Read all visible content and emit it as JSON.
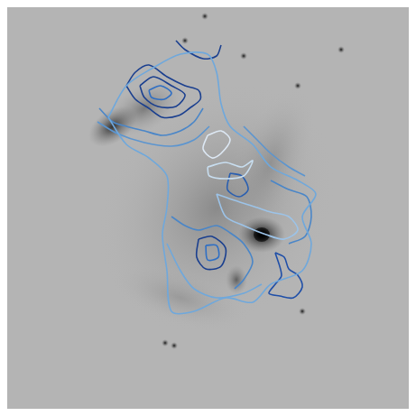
{
  "chart_data": {
    "type": "contour",
    "xlim": [
      0,
      461
    ],
    "ylim": [
      0,
      461
    ],
    "tick_labels": false,
    "grid": false,
    "series": [
      {
        "color": "#6fa8dc",
        "x": [
          120,
          140,
          165,
          185,
          185,
          180,
          185,
          190,
          215,
          250,
          280,
          300,
          335,
          345,
          335,
          350,
          330,
          300,
          280,
          255,
          245,
          240,
          230,
          200,
          170,
          140,
          120
        ],
        "values": [
          130,
          160,
          175,
          195,
          230,
          260,
          300,
          345,
          345,
          330,
          335,
          315,
          300,
          270,
          240,
          215,
          200,
          185,
          160,
          140,
          115,
          80,
          60,
          60,
          75,
          95,
          130
        ]
      },
      {
        "color": "#1a3f8f",
        "x": [
          140,
          150,
          165,
          185,
          205,
          220,
          222,
          210,
          198,
          180,
          165,
          150,
          140
        ],
        "values": [
          95,
          80,
          72,
          85,
          95,
          100,
          110,
          120,
          128,
          130,
          120,
          110,
          95
        ]
      },
      {
        "color": "#1a3f8f",
        "x": [
          155,
          170,
          190,
          205,
          195,
          175,
          160,
          155
        ],
        "values": [
          95,
          85,
          95,
          105,
          118,
          118,
          108,
          95
        ]
      },
      {
        "color": "#2f6fc4",
        "x": [
          165,
          178,
          190,
          182,
          168,
          165
        ],
        "values": [
          100,
          95,
          103,
          110,
          108,
          100
        ]
      },
      {
        "color": "#4a86c8",
        "x": [
          110,
          125,
          140,
          160,
          180,
          200,
          215,
          225
        ],
        "values": [
          120,
          135,
          140,
          145,
          150,
          145,
          135,
          120
        ]
      },
      {
        "color": "#5b95d0",
        "x": [
          108,
          130,
          160,
          190,
          215,
          232
        ],
        "values": [
          135,
          148,
          158,
          162,
          155,
          140
        ]
      },
      {
        "color": "#1a3f8f",
        "x": [
          195,
          205,
          225,
          240,
          245
        ],
        "values": [
          45,
          55,
          65,
          62,
          50
        ]
      },
      {
        "color": "#dde8f4",
        "x": [
          230,
          245,
          255,
          245,
          235,
          225,
          230
        ],
        "values": [
          150,
          145,
          155,
          170,
          175,
          165,
          150
        ]
      },
      {
        "color": "#c8def0",
        "x": [
          230,
          250,
          268,
          280,
          270,
          250,
          232,
          230
        ],
        "values": [
          185,
          180,
          185,
          178,
          195,
          198,
          195,
          185
        ]
      },
      {
        "color": "#2a5fb0",
        "x": [
          255,
          268,
          275,
          265,
          252,
          255
        ],
        "values": [
          192,
          195,
          210,
          218,
          210,
          192
        ]
      },
      {
        "color": "#9cc3e8",
        "x": [
          240,
          260,
          285,
          300,
          320,
          330,
          315,
          295,
          270,
          250,
          240
        ],
        "values": [
          215,
          222,
          230,
          235,
          240,
          255,
          265,
          260,
          250,
          240,
          215
        ]
      },
      {
        "color": "#1a3f8f",
        "x": [
          220,
          235,
          250,
          245,
          228,
          218,
          220
        ],
        "values": [
          265,
          262,
          275,
          295,
          298,
          285,
          265
        ]
      },
      {
        "color": "#2f6fc4",
        "x": [
          228,
          240,
          242,
          230,
          228
        ],
        "values": [
          272,
          272,
          285,
          288,
          272
        ]
      },
      {
        "color": "#1f4fa8",
        "x": [
          305,
          315,
          320,
          330,
          335,
          325,
          310,
          298,
          305,
          312,
          305
        ],
        "values": [
          280,
          285,
          298,
          305,
          318,
          330,
          328,
          325,
          315,
          305,
          280
        ]
      },
      {
        "color": "#4a86c8",
        "x": [
          190,
          205,
          220,
          240,
          255,
          270,
          280,
          270,
          260
        ],
        "values": [
          240,
          250,
          255,
          250,
          258,
          270,
          290,
          310,
          320
        ]
      },
      {
        "color": "#6fa8dc",
        "x": [
          185,
          200,
          215,
          240,
          270,
          290
        ],
        "values": [
          270,
          300,
          320,
          330,
          325,
          315
        ]
      },
      {
        "color": "#4a86c8",
        "x": [
          300,
          320,
          340,
          345,
          338,
          320
        ],
        "values": [
          200,
          210,
          218,
          240,
          262,
          270
        ]
      },
      {
        "color": "#5b95d0",
        "x": [
          270,
          285,
          300,
          320,
          338
        ],
        "values": [
          140,
          155,
          170,
          185,
          195
        ]
      }
    ]
  }
}
